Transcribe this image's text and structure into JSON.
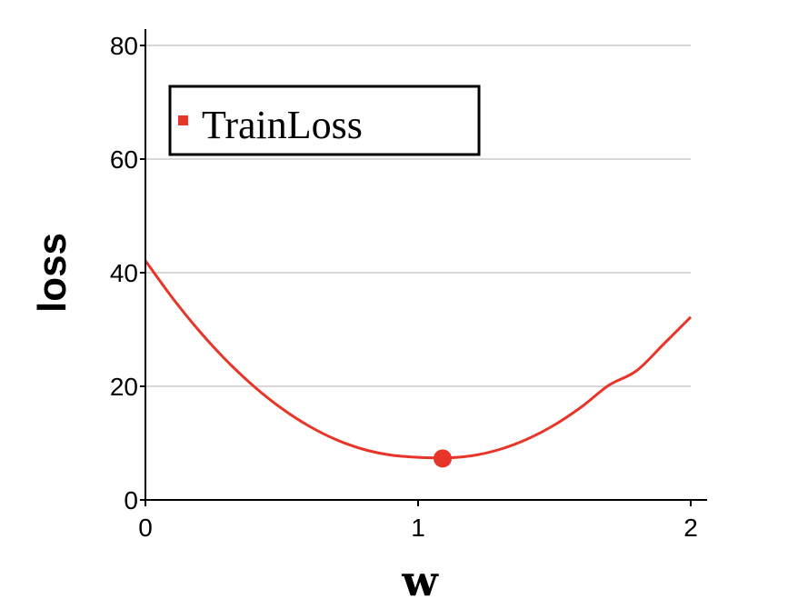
{
  "chart_data": {
    "type": "line",
    "xlabel": "w",
    "ylabel": "loss",
    "xlim": [
      0,
      2.06
    ],
    "ylim": [
      0,
      82
    ],
    "x_ticks": [
      0,
      1,
      2
    ],
    "y_ticks": [
      0,
      20,
      40,
      60,
      80
    ],
    "grid": "horizontal",
    "legend_position": "top-left",
    "color": "#e8352a",
    "series": [
      {
        "name": "TrainLoss",
        "x": [
          0,
          0.1,
          0.2,
          0.3,
          0.4,
          0.5,
          0.6,
          0.7,
          0.8,
          0.9,
          1.0,
          1.1,
          1.2,
          1.3,
          1.4,
          1.5,
          1.6,
          1.7,
          1.8,
          1.9,
          2.0
        ],
        "y": [
          42.1,
          35.5,
          29.6,
          24.4,
          19.9,
          16.1,
          13.0,
          10.6,
          8.9,
          7.9,
          7.5,
          7.4,
          7.8,
          8.9,
          10.7,
          13.2,
          16.4,
          20.2,
          22.7,
          27.4,
          32.2
        ]
      }
    ],
    "marker": {
      "x": 1.09,
      "y": 7.3
    }
  }
}
